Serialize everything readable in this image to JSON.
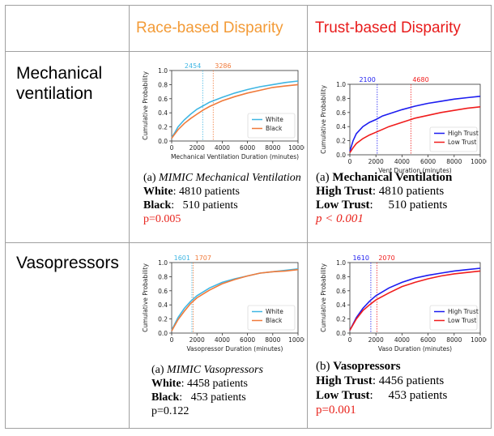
{
  "header": {
    "race_title": "Race-based Disparity",
    "trust_title": "Trust-based Disparity",
    "race_color": "#f39b37",
    "trust_color": "#e81b1b"
  },
  "rows": {
    "mv_label_line1": "Mechanical",
    "mv_label_line2": "ventilation",
    "vaso_label": "Vasopressors"
  },
  "captions": {
    "a": {
      "prefix": "(a) ",
      "title": "MIMIC Mechanical Ventilation",
      "g1_label": "White",
      "g1_value": ": 4810 patients",
      "g2_label": "Black",
      "g2_value": ":   510 patients",
      "pvalue": "p=0.005"
    },
    "b": {
      "prefix": "(a) ",
      "title": "Mechanical Ventilation",
      "g1_label": "High Trust",
      "g1_value": ": 4810 patients",
      "g2_label": "Low Trust",
      "g2_value": ":     510 patients",
      "pvalue": "p < 0.001"
    },
    "c": {
      "prefix": "(a) ",
      "title": "MIMIC Vasopressors",
      "g1_label": "White",
      "g1_value": ": 4458 patients",
      "g2_label": "Black",
      "g2_value": ":   453 patients",
      "pvalue": "p=0.122"
    },
    "d": {
      "prefix": "(b) ",
      "title": "Vasopressors",
      "g1_label": "High Trust",
      "g1_value": ": 4456 patients",
      "g2_label": "Low Trust",
      "g2_value": ":     453 patients",
      "pvalue": "p=0.001"
    }
  },
  "chart_data": [
    {
      "id": "a",
      "type": "line",
      "xlabel": "Mechanical Ventilation Duration (minutes)",
      "ylabel": "Cumulative Probability",
      "xlim": [
        0,
        10000
      ],
      "ylim": [
        0.0,
        1.0
      ],
      "xticks": [
        0,
        2000,
        4000,
        6000,
        8000,
        10000
      ],
      "yticks": [
        0.0,
        0.2,
        0.4,
        0.6,
        0.8,
        1.0
      ],
      "legend": "bottom-right",
      "series": [
        {
          "name": "White",
          "color": "#3fb6e3",
          "x": [
            0,
            250,
            500,
            1000,
            1500,
            2000,
            2500,
            3000,
            4000,
            5000,
            6000,
            7000,
            8000,
            9000,
            10000
          ],
          "y": [
            0.05,
            0.12,
            0.2,
            0.3,
            0.38,
            0.45,
            0.5,
            0.55,
            0.62,
            0.68,
            0.73,
            0.77,
            0.8,
            0.83,
            0.85
          ]
        },
        {
          "name": "Black",
          "color": "#f07a3a",
          "x": [
            0,
            250,
            500,
            1000,
            1500,
            2000,
            2500,
            3000,
            4000,
            5000,
            6000,
            7000,
            8000,
            9000,
            10000
          ],
          "y": [
            0.04,
            0.1,
            0.16,
            0.25,
            0.32,
            0.38,
            0.44,
            0.49,
            0.57,
            0.63,
            0.68,
            0.72,
            0.76,
            0.78,
            0.8
          ]
        }
      ],
      "vlines": [
        {
          "x": 2454,
          "label": "2454",
          "color": "#3fb6e3"
        },
        {
          "x": 3286,
          "label": "3286",
          "color": "#f07a3a"
        }
      ]
    },
    {
      "id": "b",
      "type": "line",
      "xlabel": "Vent Duration (minutes)",
      "ylabel": "Cumulative Probability",
      "xlim": [
        0,
        10000
      ],
      "ylim": [
        0.0,
        1.0
      ],
      "xticks": [
        0,
        2000,
        4000,
        6000,
        8000,
        10000
      ],
      "yticks": [
        0.0,
        0.2,
        0.4,
        0.6,
        0.8,
        1.0
      ],
      "legend": "bottom-right",
      "series": [
        {
          "name": "High Trust",
          "color": "#1c1cf0",
          "x": [
            0,
            250,
            500,
            1000,
            1500,
            2000,
            2500,
            3000,
            4000,
            5000,
            6000,
            7000,
            8000,
            9000,
            10000
          ],
          "y": [
            0.05,
            0.2,
            0.3,
            0.4,
            0.46,
            0.5,
            0.55,
            0.58,
            0.64,
            0.69,
            0.73,
            0.76,
            0.79,
            0.81,
            0.83
          ]
        },
        {
          "name": "Low Trust",
          "color": "#f01c1c",
          "x": [
            0,
            250,
            500,
            1000,
            1500,
            2000,
            2500,
            3000,
            4000,
            5000,
            6000,
            7000,
            8000,
            9000,
            10000
          ],
          "y": [
            0.03,
            0.1,
            0.16,
            0.23,
            0.28,
            0.32,
            0.36,
            0.4,
            0.46,
            0.52,
            0.56,
            0.6,
            0.63,
            0.66,
            0.68
          ]
        }
      ],
      "vlines": [
        {
          "x": 2100,
          "label": "2100",
          "color": "#1c1cf0"
        },
        {
          "x": 4680,
          "label": "4680",
          "color": "#f01c1c"
        }
      ]
    },
    {
      "id": "c",
      "type": "line",
      "xlabel": "Vasopressor Duration (minutes)",
      "ylabel": "Cumulative Probability",
      "xlim": [
        0,
        10000
      ],
      "ylim": [
        0.0,
        1.0
      ],
      "xticks": [
        0,
        2000,
        4000,
        6000,
        8000,
        10000
      ],
      "yticks": [
        0.0,
        0.2,
        0.4,
        0.6,
        0.8,
        1.0
      ],
      "legend": "bottom-right",
      "series": [
        {
          "name": "White",
          "color": "#3fb6e3",
          "x": [
            0,
            250,
            500,
            1000,
            1500,
            2000,
            3000,
            4000,
            5000,
            6000,
            7000,
            8000,
            9000,
            10000
          ],
          "y": [
            0.04,
            0.13,
            0.22,
            0.35,
            0.45,
            0.53,
            0.64,
            0.72,
            0.77,
            0.81,
            0.85,
            0.87,
            0.89,
            0.91
          ]
        },
        {
          "name": "Black",
          "color": "#f07a3a",
          "x": [
            0,
            250,
            500,
            1000,
            1500,
            2000,
            3000,
            4000,
            5000,
            6000,
            7000,
            8000,
            9000,
            10000
          ],
          "y": [
            0.03,
            0.11,
            0.19,
            0.31,
            0.42,
            0.5,
            0.61,
            0.7,
            0.76,
            0.81,
            0.85,
            0.87,
            0.88,
            0.9
          ]
        }
      ],
      "vlines": [
        {
          "x": 1601,
          "label": "1601",
          "color": "#3fb6e3"
        },
        {
          "x": 1707,
          "label": "1707",
          "color": "#f07a3a"
        }
      ]
    },
    {
      "id": "d",
      "type": "line",
      "xlabel": "Vaso Duration (minutes)",
      "ylabel": "Cumulative Probability",
      "xlim": [
        0,
        10000
      ],
      "ylim": [
        0.0,
        1.0
      ],
      "xticks": [
        0,
        2000,
        4000,
        6000,
        8000,
        10000
      ],
      "yticks": [
        0.0,
        0.2,
        0.4,
        0.6,
        0.8,
        1.0
      ],
      "legend": "bottom-right",
      "series": [
        {
          "name": "High Trust",
          "color": "#1c1cf0",
          "x": [
            0,
            250,
            500,
            1000,
            1500,
            2000,
            3000,
            4000,
            5000,
            6000,
            7000,
            8000,
            9000,
            10000
          ],
          "y": [
            0.04,
            0.13,
            0.22,
            0.35,
            0.45,
            0.53,
            0.64,
            0.72,
            0.78,
            0.82,
            0.85,
            0.88,
            0.9,
            0.92
          ]
        },
        {
          "name": "Low Trust",
          "color": "#f01c1c",
          "x": [
            0,
            250,
            500,
            1000,
            1500,
            2000,
            3000,
            4000,
            5000,
            6000,
            7000,
            8000,
            9000,
            10000
          ],
          "y": [
            0.04,
            0.12,
            0.2,
            0.32,
            0.4,
            0.47,
            0.57,
            0.66,
            0.72,
            0.77,
            0.81,
            0.84,
            0.86,
            0.88
          ]
        }
      ],
      "vlines": [
        {
          "x": 1610,
          "label": "1610",
          "color": "#1c1cf0"
        },
        {
          "x": 2070,
          "label": "2070",
          "color": "#f01c1c"
        }
      ]
    }
  ]
}
